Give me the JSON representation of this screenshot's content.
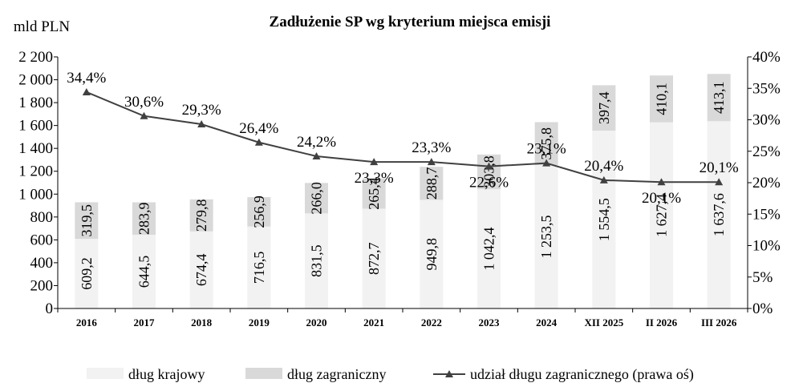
{
  "chart_data": {
    "type": "bar",
    "stacked": true,
    "title": "Zadłużenie SP wg kryterium miejsca emisji",
    "y_unit_label": "mld PLN",
    "categories": [
      "2016",
      "2017",
      "2018",
      "2019",
      "2020",
      "2021",
      "2022",
      "2023",
      "2024",
      "XII 2025",
      "II 2026",
      "III 2026"
    ],
    "series": [
      {
        "name": "dług krajowy",
        "color": "#f2f2f2",
        "values": [
          609.2,
          644.5,
          674.4,
          716.5,
          831.5,
          872.7,
          949.8,
          1042.4,
          1253.5,
          1554.5,
          1627.4,
          1637.6
        ],
        "labels": [
          "609,2",
          "644,5",
          "674,4",
          "716,5",
          "831,5",
          "872,7",
          "949,8",
          "1 042,4",
          "1 253,5",
          "1 554,5",
          "1 627,4",
          "1 637,6"
        ]
      },
      {
        "name": "dług zagraniczny",
        "color": "#d9d9d9",
        "values": [
          319.5,
          283.9,
          279.8,
          256.9,
          266.0,
          265.4,
          288.7,
          303.8,
          375.8,
          397.4,
          410.1,
          413.1
        ],
        "labels": [
          "319,5",
          "283,9",
          "279,8",
          "256,9",
          "266,0",
          "265,4",
          "288,7",
          "303,8",
          "375,8",
          "397,4",
          "410,1",
          "413,1"
        ]
      }
    ],
    "line_series": {
      "name": "udział długu zagranicznego (prawa oś)",
      "color": "#404040",
      "axis": "right",
      "values": [
        34.4,
        30.6,
        29.3,
        26.4,
        24.2,
        23.3,
        23.3,
        22.6,
        23.1,
        20.4,
        20.1,
        20.1
      ],
      "labels": [
        "34,4%",
        "30,6%",
        "29,3%",
        "26,4%",
        "24,2%",
        "23,3%",
        "23,3%",
        "22,6%",
        "23,1%",
        "20,4%",
        "20,1%",
        "20,1%"
      ]
    },
    "ylim_left": [
      0,
      2200
    ],
    "yticks_left": [
      "0",
      "200",
      "400",
      "600",
      "800",
      "1 000",
      "1 200",
      "1 400",
      "1 600",
      "1 800",
      "2 000",
      "2 200"
    ],
    "ylim_right": [
      0,
      40
    ],
    "yticks_right": [
      "0%",
      "5%",
      "10%",
      "15%",
      "20%",
      "25%",
      "30%",
      "35%",
      "40%"
    ],
    "grid": false,
    "legend_position": "bottom"
  }
}
